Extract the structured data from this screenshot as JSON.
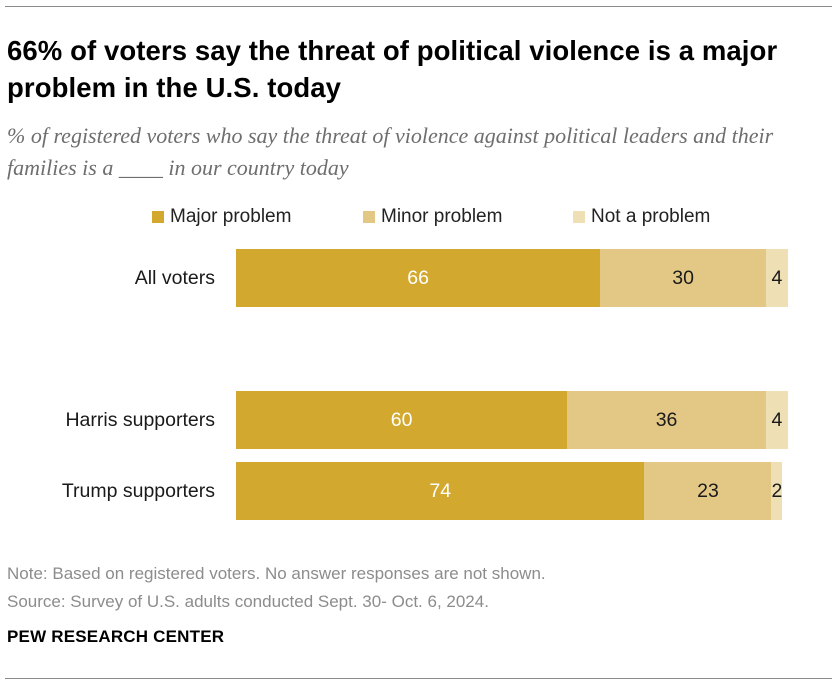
{
  "title": "66% of voters say the threat of political violence is a major problem in the U.S. today",
  "subtitle": "% of registered voters who say the threat of violence against political leaders and their families is a ____ in our country today",
  "note": "Note: Based on registered voters. No answer responses are not shown.",
  "source": "Source: Survey of U.S. adults conducted Sept. 30- Oct. 6, 2024.",
  "organization": "PEW RESEARCH CENTER",
  "colors": {
    "major": "#d3a82f",
    "minor": "#e3c785",
    "none": "#efdfb4",
    "label_on_dark": "#ffffff",
    "label_on_light": "#1a1a1a"
  },
  "chart_data": {
    "type": "bar",
    "orientation": "horizontal",
    "stacked": true,
    "title": "66% of voters say the threat of political violence is a major problem in the U.S. today",
    "subtitle": "% of registered voters who say the threat of violence against political leaders and their families is a ____ in our country today",
    "xlim": [
      0,
      100
    ],
    "grid": false,
    "legend_position": "top",
    "categories": [
      "All voters",
      "Harris supporters",
      "Trump supporters"
    ],
    "series": [
      {
        "name": "Major problem",
        "values": [
          66,
          60,
          74
        ]
      },
      {
        "name": "Minor problem",
        "values": [
          30,
          36,
          23
        ]
      },
      {
        "name": "Not a problem",
        "values": [
          4,
          4,
          2
        ]
      }
    ]
  }
}
